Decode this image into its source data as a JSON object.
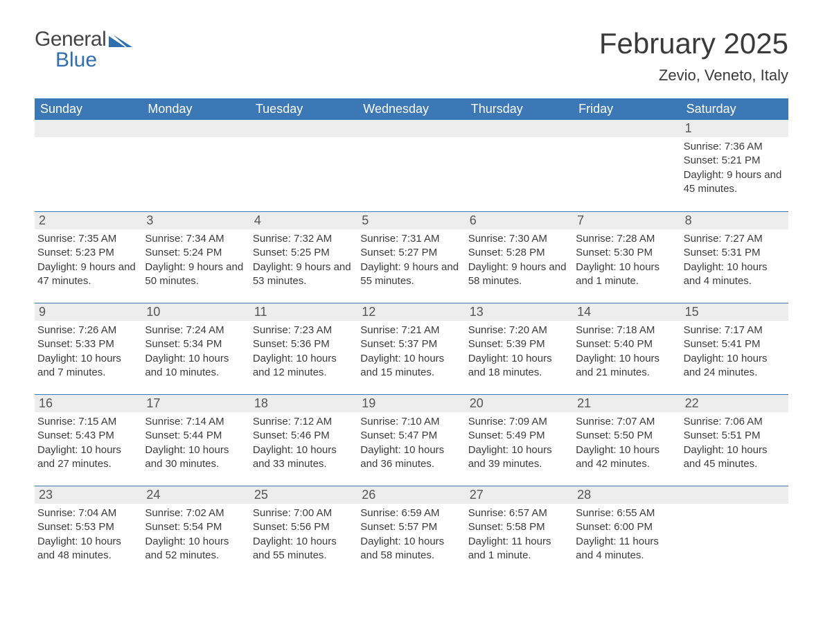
{
  "logo": {
    "word1": "General",
    "word2": "Blue"
  },
  "title": "February 2025",
  "location": "Zevio, Veneto, Italy",
  "colors": {
    "header_bg": "#3b78b5",
    "header_text": "#ffffff",
    "strip_bg": "#ededed",
    "row_border": "#3b78b5",
    "text": "#3a3a3a",
    "logo_gray": "#444444",
    "logo_blue": "#2f6fb0",
    "page_bg": "#ffffff"
  },
  "typography": {
    "title_fontsize": 42,
    "location_fontsize": 22,
    "weekday_fontsize": 18,
    "daynum_fontsize": 18,
    "detail_fontsize": 15
  },
  "weekdays": [
    "Sunday",
    "Monday",
    "Tuesday",
    "Wednesday",
    "Thursday",
    "Friday",
    "Saturday"
  ],
  "weeks": [
    [
      null,
      null,
      null,
      null,
      null,
      null,
      {
        "day": "1",
        "sunrise": "Sunrise: 7:36 AM",
        "sunset": "Sunset: 5:21 PM",
        "daylight": "Daylight: 9 hours and 45 minutes."
      }
    ],
    [
      {
        "day": "2",
        "sunrise": "Sunrise: 7:35 AM",
        "sunset": "Sunset: 5:23 PM",
        "daylight": "Daylight: 9 hours and 47 minutes."
      },
      {
        "day": "3",
        "sunrise": "Sunrise: 7:34 AM",
        "sunset": "Sunset: 5:24 PM",
        "daylight": "Daylight: 9 hours and 50 minutes."
      },
      {
        "day": "4",
        "sunrise": "Sunrise: 7:32 AM",
        "sunset": "Sunset: 5:25 PM",
        "daylight": "Daylight: 9 hours and 53 minutes."
      },
      {
        "day": "5",
        "sunrise": "Sunrise: 7:31 AM",
        "sunset": "Sunset: 5:27 PM",
        "daylight": "Daylight: 9 hours and 55 minutes."
      },
      {
        "day": "6",
        "sunrise": "Sunrise: 7:30 AM",
        "sunset": "Sunset: 5:28 PM",
        "daylight": "Daylight: 9 hours and 58 minutes."
      },
      {
        "day": "7",
        "sunrise": "Sunrise: 7:28 AM",
        "sunset": "Sunset: 5:30 PM",
        "daylight": "Daylight: 10 hours and 1 minute."
      },
      {
        "day": "8",
        "sunrise": "Sunrise: 7:27 AM",
        "sunset": "Sunset: 5:31 PM",
        "daylight": "Daylight: 10 hours and 4 minutes."
      }
    ],
    [
      {
        "day": "9",
        "sunrise": "Sunrise: 7:26 AM",
        "sunset": "Sunset: 5:33 PM",
        "daylight": "Daylight: 10 hours and 7 minutes."
      },
      {
        "day": "10",
        "sunrise": "Sunrise: 7:24 AM",
        "sunset": "Sunset: 5:34 PM",
        "daylight": "Daylight: 10 hours and 10 minutes."
      },
      {
        "day": "11",
        "sunrise": "Sunrise: 7:23 AM",
        "sunset": "Sunset: 5:36 PM",
        "daylight": "Daylight: 10 hours and 12 minutes."
      },
      {
        "day": "12",
        "sunrise": "Sunrise: 7:21 AM",
        "sunset": "Sunset: 5:37 PM",
        "daylight": "Daylight: 10 hours and 15 minutes."
      },
      {
        "day": "13",
        "sunrise": "Sunrise: 7:20 AM",
        "sunset": "Sunset: 5:39 PM",
        "daylight": "Daylight: 10 hours and 18 minutes."
      },
      {
        "day": "14",
        "sunrise": "Sunrise: 7:18 AM",
        "sunset": "Sunset: 5:40 PM",
        "daylight": "Daylight: 10 hours and 21 minutes."
      },
      {
        "day": "15",
        "sunrise": "Sunrise: 7:17 AM",
        "sunset": "Sunset: 5:41 PM",
        "daylight": "Daylight: 10 hours and 24 minutes."
      }
    ],
    [
      {
        "day": "16",
        "sunrise": "Sunrise: 7:15 AM",
        "sunset": "Sunset: 5:43 PM",
        "daylight": "Daylight: 10 hours and 27 minutes."
      },
      {
        "day": "17",
        "sunrise": "Sunrise: 7:14 AM",
        "sunset": "Sunset: 5:44 PM",
        "daylight": "Daylight: 10 hours and 30 minutes."
      },
      {
        "day": "18",
        "sunrise": "Sunrise: 7:12 AM",
        "sunset": "Sunset: 5:46 PM",
        "daylight": "Daylight: 10 hours and 33 minutes."
      },
      {
        "day": "19",
        "sunrise": "Sunrise: 7:10 AM",
        "sunset": "Sunset: 5:47 PM",
        "daylight": "Daylight: 10 hours and 36 minutes."
      },
      {
        "day": "20",
        "sunrise": "Sunrise: 7:09 AM",
        "sunset": "Sunset: 5:49 PM",
        "daylight": "Daylight: 10 hours and 39 minutes."
      },
      {
        "day": "21",
        "sunrise": "Sunrise: 7:07 AM",
        "sunset": "Sunset: 5:50 PM",
        "daylight": "Daylight: 10 hours and 42 minutes."
      },
      {
        "day": "22",
        "sunrise": "Sunrise: 7:06 AM",
        "sunset": "Sunset: 5:51 PM",
        "daylight": "Daylight: 10 hours and 45 minutes."
      }
    ],
    [
      {
        "day": "23",
        "sunrise": "Sunrise: 7:04 AM",
        "sunset": "Sunset: 5:53 PM",
        "daylight": "Daylight: 10 hours and 48 minutes."
      },
      {
        "day": "24",
        "sunrise": "Sunrise: 7:02 AM",
        "sunset": "Sunset: 5:54 PM",
        "daylight": "Daylight: 10 hours and 52 minutes."
      },
      {
        "day": "25",
        "sunrise": "Sunrise: 7:00 AM",
        "sunset": "Sunset: 5:56 PM",
        "daylight": "Daylight: 10 hours and 55 minutes."
      },
      {
        "day": "26",
        "sunrise": "Sunrise: 6:59 AM",
        "sunset": "Sunset: 5:57 PM",
        "daylight": "Daylight: 10 hours and 58 minutes."
      },
      {
        "day": "27",
        "sunrise": "Sunrise: 6:57 AM",
        "sunset": "Sunset: 5:58 PM",
        "daylight": "Daylight: 11 hours and 1 minute."
      },
      {
        "day": "28",
        "sunrise": "Sunrise: 6:55 AM",
        "sunset": "Sunset: 6:00 PM",
        "daylight": "Daylight: 11 hours and 4 minutes."
      },
      null
    ]
  ]
}
